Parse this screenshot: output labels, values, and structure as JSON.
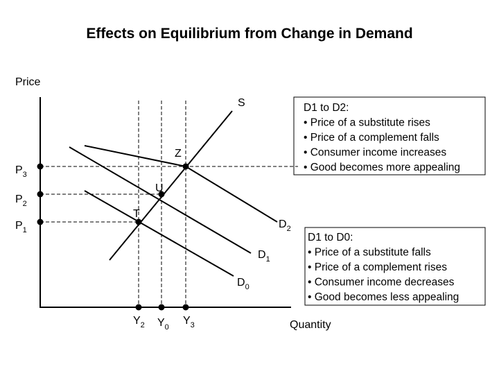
{
  "title": "Effects on Equilibrium from Change in Demand",
  "axes": {
    "y_label": "Price",
    "x_label": "Quantity"
  },
  "curves": {
    "supply": "S",
    "demand": [
      {
        "letter": "D",
        "sub": "2"
      },
      {
        "letter": "D",
        "sub": "1"
      },
      {
        "letter": "D",
        "sub": "0"
      }
    ]
  },
  "points": [
    "Z",
    "U",
    "T"
  ],
  "prices": [
    {
      "letter": "P",
      "sub": "3"
    },
    {
      "letter": "P",
      "sub": "2"
    },
    {
      "letter": "P",
      "sub": "1"
    }
  ],
  "quantities": [
    {
      "letter": "Y",
      "sub": "2"
    },
    {
      "letter": "Y",
      "sub": "0"
    },
    {
      "letter": "Y",
      "sub": "3"
    }
  ],
  "increase_box": {
    "heading": "D1 to D2:",
    "items": [
      "• Price of a substitute rises",
      "• Price of a complement falls",
      "• Consumer income increases",
      "• Good becomes more appealing"
    ]
  },
  "decrease_box": {
    "heading": "D1 to D0:",
    "items": [
      "• Price of a substitute falls",
      "• Price of a complement rises",
      "• Consumer income decreases",
      "• Good becomes less appealing"
    ]
  }
}
